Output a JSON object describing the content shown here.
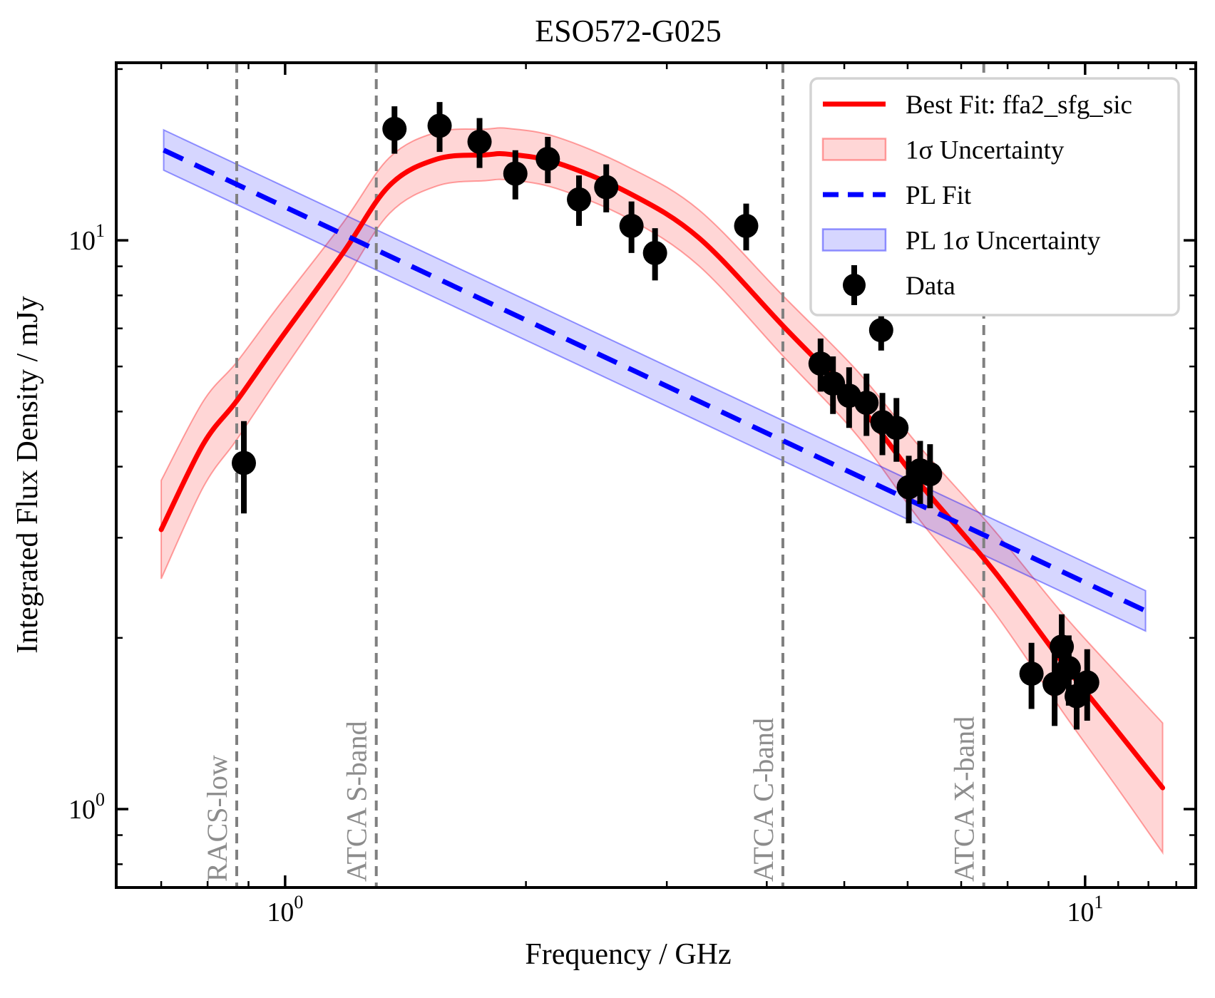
{
  "title": "ESO572-G025",
  "chart_data": {
    "type": "line",
    "title": "ESO572-G025",
    "xlabel": "Frequency / GHz",
    "ylabel": "Integrated Flux Density / mJy",
    "xscale": "log",
    "yscale": "log",
    "xlim": [
      0.615,
      13.75
    ],
    "ylim": [
      0.728,
      20.52
    ],
    "grid": false,
    "legend_position": "upper right",
    "colors": {
      "best_fit": "#ff0000",
      "best_fit_band": "rgba(255,0,0,0.16)",
      "best_fit_band_edge": "rgba(255,0,0,0.35)",
      "pl_fit": "#0000ff",
      "pl_band": "rgba(0,0,255,0.16)",
      "pl_band_edge": "rgba(0,0,255,0.40)",
      "reference_line": "#808080",
      "annotation_text": "#8c8c8c",
      "data": "#000000",
      "legend_border": "#d3d3d3"
    },
    "x_major_ticks": [
      {
        "value": 1,
        "mantissa": "10",
        "exponent": "0"
      },
      {
        "value": 10,
        "mantissa": "10",
        "exponent": "1"
      }
    ],
    "x_minor_ticks": [
      0.7,
      0.8,
      0.9,
      2,
      3,
      4,
      5,
      6,
      7,
      8,
      9,
      11,
      12,
      13
    ],
    "y_major_ticks": [
      {
        "value": 1,
        "mantissa": "10",
        "exponent": "0"
      },
      {
        "value": 10,
        "mantissa": "10",
        "exponent": "1"
      }
    ],
    "y_minor_ticks": [
      0.8,
      0.9,
      2,
      3,
      4,
      5,
      6,
      7,
      8,
      9,
      20
    ],
    "best_fit": {
      "label": "Best Fit: ffa2_sfg_sic",
      "samples": [
        {
          "f": 0.7,
          "s": 3.1,
          "k": 1.22
        },
        {
          "f": 0.79,
          "s": 4.38,
          "k": 1.19
        },
        {
          "f": 0.87,
          "s": 5.22,
          "k": 1.17
        },
        {
          "f": 0.98,
          "s": 6.62,
          "k": 1.155
        },
        {
          "f": 1.18,
          "s": 9.48,
          "k": 1.13
        },
        {
          "f": 1.35,
          "s": 12.48,
          "k": 1.12
        },
        {
          "f": 1.55,
          "s": 13.9,
          "k": 1.115
        },
        {
          "f": 1.78,
          "s": 14.13,
          "k": 1.11
        },
        {
          "f": 1.9,
          "s": 14.17,
          "k": 1.11
        },
        {
          "f": 2.18,
          "s": 13.7,
          "k": 1.11
        },
        {
          "f": 2.68,
          "s": 12.14,
          "k": 1.11
        },
        {
          "f": 3.29,
          "s": 10.1,
          "k": 1.12
        },
        {
          "f": 4.2,
          "s": 7.05,
          "k": 1.13
        },
        {
          "f": 5.19,
          "s": 5.17,
          "k": 1.14
        },
        {
          "f": 6.21,
          "s": 3.74,
          "k": 1.16
        },
        {
          "f": 7.68,
          "s": 2.63,
          "k": 1.18
        },
        {
          "f": 9.37,
          "s": 1.81,
          "k": 1.22
        },
        {
          "f": 10.98,
          "s": 1.37,
          "k": 1.26
        },
        {
          "f": 12.5,
          "s": 1.09,
          "k": 1.3
        }
      ]
    },
    "pl_fit": {
      "label": "PL Fit",
      "band_label": "PL 1σ Uncertainty",
      "norm_1ghz_mjy": 11.44,
      "alpha": -0.66,
      "f_range": [
        0.705,
        11.9
      ],
      "band_factor": 1.085
    },
    "best_fit_band_label": "1σ Uncertainty",
    "data_series": {
      "label": "Data",
      "points": [
        {
          "f": 0.888,
          "s": 4.06,
          "e": 0.75
        },
        {
          "f": 1.37,
          "s": 15.7,
          "e": 1.5
        },
        {
          "f": 1.56,
          "s": 15.9,
          "e": 1.6
        },
        {
          "f": 1.75,
          "s": 14.9,
          "e": 1.5
        },
        {
          "f": 1.94,
          "s": 13.1,
          "e": 1.3
        },
        {
          "f": 2.13,
          "s": 13.9,
          "e": 1.3
        },
        {
          "f": 2.33,
          "s": 11.8,
          "e": 1.2
        },
        {
          "f": 2.52,
          "s": 12.4,
          "e": 1.2
        },
        {
          "f": 2.71,
          "s": 10.6,
          "e": 1.1
        },
        {
          "f": 2.9,
          "s": 9.5,
          "e": 1.0
        },
        {
          "f": 3.77,
          "s": 10.6,
          "e": 1.0
        },
        {
          "f": 4.67,
          "s": 6.07,
          "e": 0.65
        },
        {
          "f": 4.84,
          "s": 5.6,
          "e": 0.65
        },
        {
          "f": 5.07,
          "s": 5.33,
          "e": 0.65
        },
        {
          "f": 5.33,
          "s": 5.18,
          "e": 0.65
        },
        {
          "f": 5.56,
          "s": 6.95,
          "e": 0.55
        },
        {
          "f": 5.58,
          "s": 4.79,
          "e": 0.6
        },
        {
          "f": 5.81,
          "s": 4.68,
          "e": 0.6
        },
        {
          "f": 6.02,
          "s": 3.68,
          "e": 0.5
        },
        {
          "f": 6.22,
          "s": 3.94,
          "e": 0.5
        },
        {
          "f": 6.4,
          "s": 3.88,
          "e": 0.5
        },
        {
          "f": 8.57,
          "s": 1.73,
          "e": 0.23
        },
        {
          "f": 9.16,
          "s": 1.66,
          "e": 0.26
        },
        {
          "f": 9.35,
          "s": 1.93,
          "e": 0.27
        },
        {
          "f": 9.54,
          "s": 1.77,
          "e": 0.25
        },
        {
          "f": 9.76,
          "s": 1.58,
          "e": 0.2
        },
        {
          "f": 10.06,
          "s": 1.67,
          "e": 0.24
        }
      ]
    },
    "reference_lines": [
      {
        "f": 0.87,
        "label": "RACS-low"
      },
      {
        "f": 1.3,
        "label": "ATCA S-band"
      },
      {
        "f": 4.19,
        "label": "ATCA C-band"
      },
      {
        "f": 7.47,
        "label": "ATCA X-band"
      }
    ],
    "legend": {
      "entries": [
        {
          "type": "line",
          "label": "Best Fit: ffa2_sfg_sic"
        },
        {
          "type": "red-patch",
          "label": "1σ Uncertainty"
        },
        {
          "type": "dashed",
          "label": "PL Fit"
        },
        {
          "type": "blue-patch",
          "label": "PL 1σ Uncertainty"
        },
        {
          "type": "marker",
          "label": "Data"
        }
      ]
    }
  }
}
